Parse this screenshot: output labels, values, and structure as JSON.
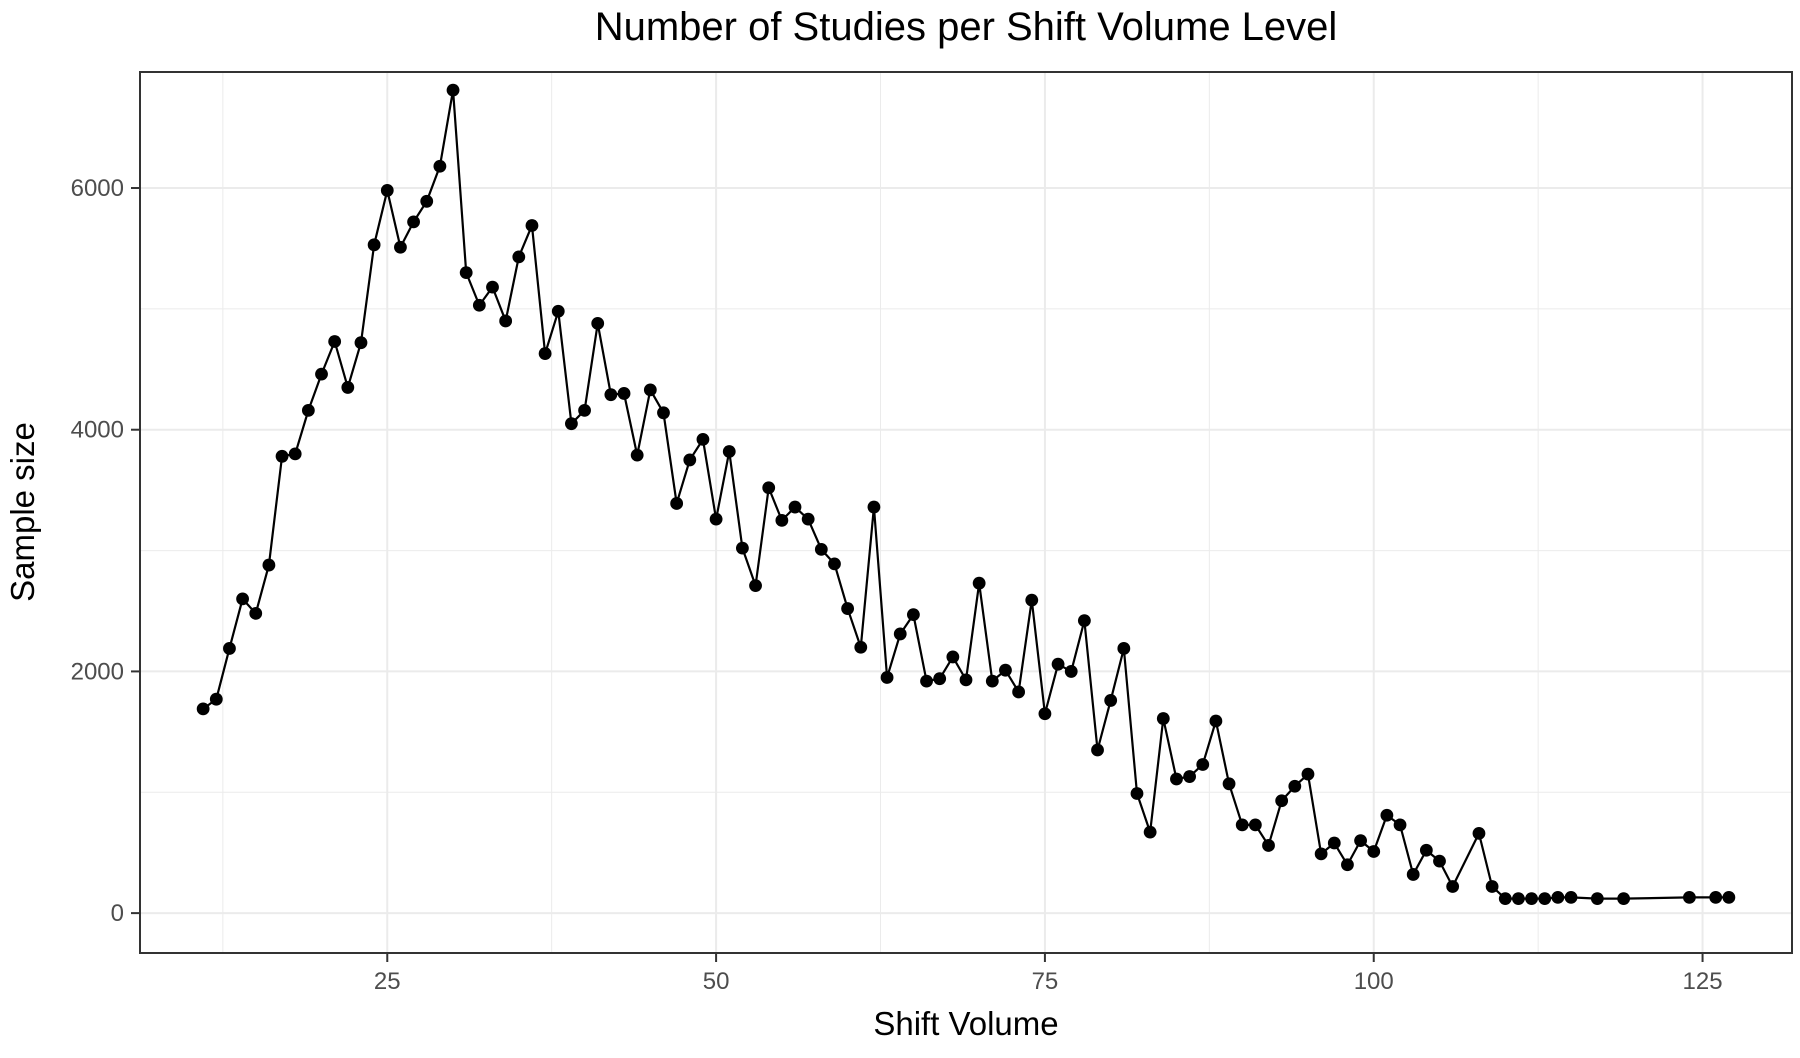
{
  "chart_data": {
    "type": "line",
    "title": "Number of Studies per Shift Volume Level",
    "xlabel": "Shift Volume",
    "ylabel": "Sample size",
    "xlim": [
      6.2,
      131.8
    ],
    "ylim": [
      -330,
      6960
    ],
    "xticks": [
      25,
      50,
      75,
      100,
      125
    ],
    "yticks": [
      0,
      2000,
      4000,
      6000
    ],
    "x_minor_gridlines": [
      12.5,
      37.5,
      62.5,
      87.5,
      112.5
    ],
    "y_minor_gridlines": [
      1000,
      3000,
      5000
    ],
    "grid": true,
    "legend": "none",
    "colors": {
      "line": "#000000",
      "points": "#000000",
      "grid": "#ebebeb",
      "panel_border": "#333333",
      "background": "#ffffff"
    },
    "series": [
      {
        "x": [
          11,
          12,
          13,
          14,
          15,
          16,
          17,
          18,
          19,
          20,
          21,
          22,
          23,
          24,
          25,
          26,
          27,
          28,
          29,
          30,
          31,
          32,
          33,
          34,
          35,
          36,
          37,
          38,
          39,
          40,
          41,
          42,
          43,
          44,
          45,
          46,
          47,
          48,
          49,
          50,
          51,
          52,
          53,
          54,
          55,
          56,
          57,
          58,
          59,
          60,
          61,
          62,
          63,
          64,
          65,
          66,
          67,
          68,
          69,
          70,
          71,
          72,
          73,
          74,
          75,
          76,
          77,
          78,
          79,
          80,
          81,
          82,
          83,
          84,
          85,
          86,
          87,
          88,
          89,
          90,
          91,
          92,
          93,
          94,
          95,
          96,
          97,
          98,
          99,
          100,
          101,
          102,
          103,
          104,
          105,
          106,
          108,
          109,
          110,
          111,
          112,
          113,
          114,
          115,
          117,
          119,
          124,
          126,
          127
        ],
        "y": [
          1690,
          1770,
          2190,
          2600,
          2480,
          2880,
          3780,
          3800,
          4160,
          4460,
          4730,
          4350,
          4720,
          5530,
          5980,
          5510,
          5720,
          5890,
          6180,
          6810,
          5300,
          5030,
          5180,
          4900,
          5430,
          5690,
          4630,
          4980,
          4050,
          4160,
          4880,
          4290,
          4300,
          3790,
          4330,
          4140,
          3390,
          3750,
          3920,
          3260,
          3820,
          3020,
          2710,
          3520,
          3250,
          3360,
          3260,
          3010,
          2890,
          2520,
          2200,
          3360,
          1950,
          2310,
          2470,
          1920,
          1940,
          2120,
          1930,
          2730,
          1920,
          2010,
          1830,
          2590,
          1650,
          2060,
          2000,
          2420,
          1350,
          1760,
          2190,
          990,
          670,
          1610,
          1110,
          1130,
          1230,
          1590,
          1070,
          730,
          730,
          560,
          930,
          1050,
          1150,
          490,
          580,
          400,
          600,
          510,
          810,
          730,
          320,
          520,
          430,
          220,
          660,
          220,
          120,
          120,
          120,
          120,
          130,
          130,
          120,
          120,
          130,
          130,
          130
        ]
      }
    ]
  }
}
